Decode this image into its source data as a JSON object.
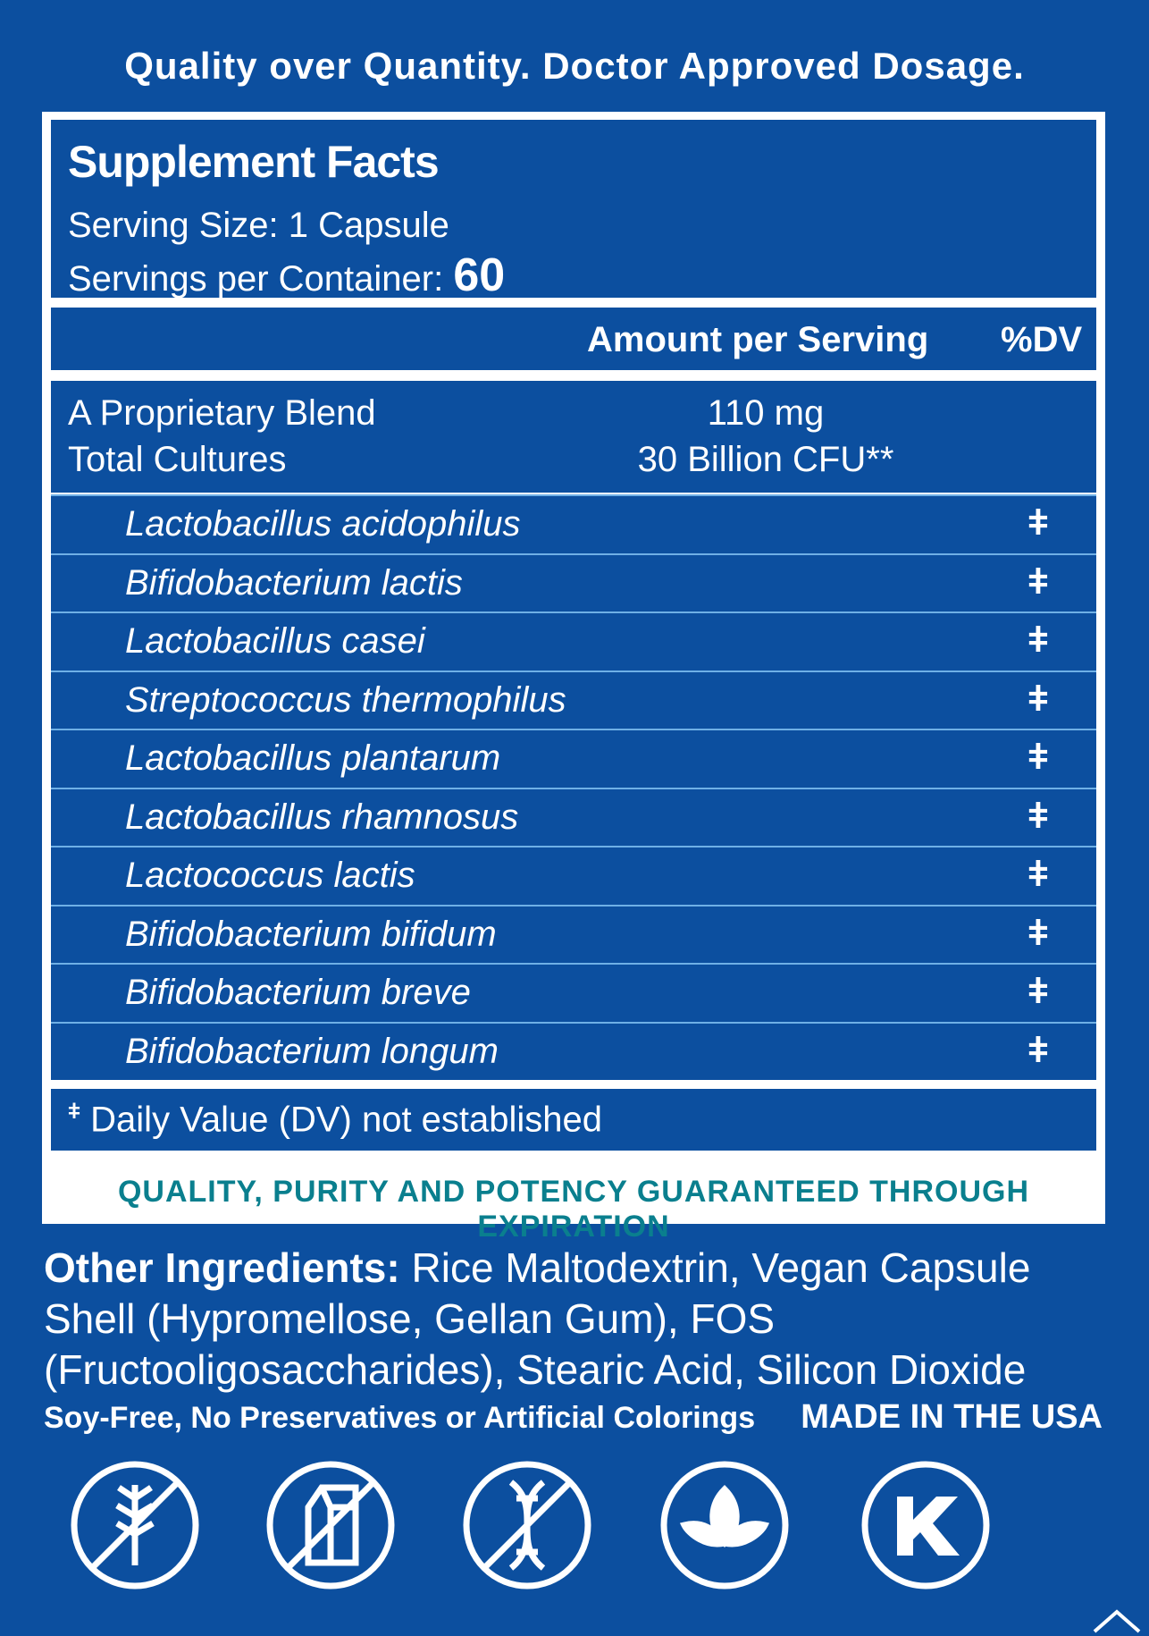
{
  "header": {
    "tagline": "Quality over Quantity. Doctor Approved Dosage."
  },
  "facts": {
    "title": "Supplement Facts",
    "serving_size": "Serving Size: 1 Capsule",
    "servings_label": "Servings per Container:",
    "servings_value": "60"
  },
  "table": {
    "columns": [
      "Amount per Serving",
      "%DV"
    ],
    "blend": [
      {
        "name": "A Proprietary Blend",
        "amount": "110 mg"
      },
      {
        "name": "Total Cultures",
        "amount": "30 Billion CFU**"
      }
    ],
    "strains": [
      {
        "name": "Lactobacillus acidophilus",
        "dv": "ǂ"
      },
      {
        "name": "Bifidobacterium lactis",
        "dv": "ǂ"
      },
      {
        "name": "Lactobacillus casei",
        "dv": "ǂ"
      },
      {
        "name": "Streptococcus thermophilus",
        "dv": "ǂ"
      },
      {
        "name": "Lactobacillus plantarum",
        "dv": "ǂ"
      },
      {
        "name": "Lactobacillus rhamnosus",
        "dv": "ǂ"
      },
      {
        "name": "Lactococcus lactis",
        "dv": "ǂ"
      },
      {
        "name": "Bifidobacterium bifidum",
        "dv": "ǂ"
      },
      {
        "name": "Bifidobacterium breve",
        "dv": "ǂ"
      },
      {
        "name": "Bifidobacterium longum",
        "dv": "ǂ"
      }
    ],
    "footnote_mark": "ǂ",
    "footnote": "Daily Value (DV) not established"
  },
  "guarantee": "QUALITY, PURITY AND POTENCY GUARANTEED THROUGH EXPIRATION",
  "other_ingredients": {
    "label": "Other Ingredients:",
    "text": "Rice Maltodextrin, Vegan Capsule Shell (Hypromellose, Gellan Gum), FOS (Fructooligosaccharides), Stearic Acid, Silicon Dioxide"
  },
  "claims": {
    "free_from": "Soy-Free, No Preservatives or Artificial Colorings",
    "origin": "MADE IN THE USA"
  }
}
